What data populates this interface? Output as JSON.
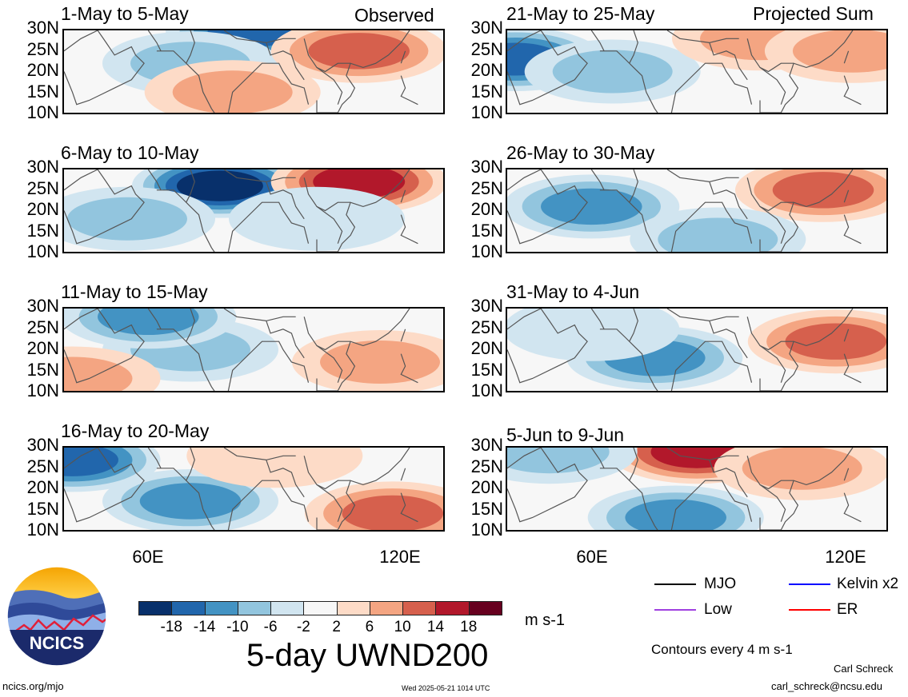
{
  "left_column_label": "Observed",
  "right_column_label": "Projected Sum",
  "panels_left": [
    {
      "title": "1-May to 5-May"
    },
    {
      "title": "6-May to 10-May"
    },
    {
      "title": "11-May to 15-May"
    },
    {
      "title": "16-May to 20-May"
    }
  ],
  "panels_right": [
    {
      "title": "21-May to 25-May"
    },
    {
      "title": "26-May to 30-May"
    },
    {
      "title": "31-May to 4-Jun"
    },
    {
      "title": "5-Jun to 9-Jun"
    }
  ],
  "y_ticks": [
    "30N",
    "25N",
    "20N",
    "15N",
    "10N"
  ],
  "x_ticks": [
    "60E",
    "120E"
  ],
  "colorbar": {
    "labels": [
      "-18",
      "-14",
      "-10",
      "-6",
      "-2",
      "2",
      "6",
      "10",
      "14",
      "18"
    ],
    "unit": "m s-1",
    "colors": [
      "#08306b",
      "#2166ac",
      "#4393c3",
      "#92c5de",
      "#d1e5f0",
      "#f7f7f7",
      "#fddbc7",
      "#f4a582",
      "#d6604d",
      "#b2182b",
      "#67001f"
    ]
  },
  "main_title": "5-day UWND200",
  "legend": {
    "items": [
      {
        "label": "MJO",
        "color": "#000000"
      },
      {
        "label": "Kelvin x2",
        "color": "#0000ff"
      },
      {
        "label": "Low",
        "color": "#a040e0"
      },
      {
        "label": "ER",
        "color": "#ff0000"
      }
    ],
    "contour_note": "Contours every 4 m s-1"
  },
  "logo": {
    "text": "NCICS"
  },
  "footer": {
    "url": "ncics.org/mjo",
    "timestamp": "Wed 2025-05-21 1014 UTC",
    "author": "Carl Schreck",
    "email": "carl_schreck@ncsu.edu"
  },
  "chart_data": {
    "type": "heatmap",
    "variable": "5-day UWND200",
    "unit": "m s-1",
    "levels": [
      -18,
      -14,
      -10,
      -6,
      -2,
      2,
      6,
      10,
      14,
      18
    ],
    "lat_range": [
      10,
      30
    ],
    "lon_range": [
      40,
      130
    ],
    "x_tick_labels": [
      "60E",
      "120E"
    ],
    "y_tick_labels": [
      "30N",
      "25N",
      "20N",
      "15N",
      "10N"
    ],
    "legend_placement": "bottom-right",
    "contour_interval_note": "Contours every 4 m s-1",
    "panels": [
      {
        "title": "1-May to 5-May",
        "column": "Observed",
        "fields": [
          {
            "lon": 85,
            "lat": 30,
            "value": -14
          },
          {
            "lon": 70,
            "lat": 22,
            "value": -6
          },
          {
            "lon": 110,
            "lat": 25,
            "value": 10
          },
          {
            "lon": 80,
            "lat": 15,
            "value": 6
          }
        ]
      },
      {
        "title": "6-May to 10-May",
        "column": "Observed",
        "fields": [
          {
            "lon": 77,
            "lat": 26,
            "value": -18
          },
          {
            "lon": 110,
            "lat": 27,
            "value": 14
          },
          {
            "lon": 55,
            "lat": 18,
            "value": -6
          },
          {
            "lon": 100,
            "lat": 18,
            "value": -2
          }
        ]
      },
      {
        "title": "11-May to 15-May",
        "column": "Observed",
        "fields": [
          {
            "lon": 70,
            "lat": 20,
            "value": -6
          },
          {
            "lon": 60,
            "lat": 28,
            "value": -10
          },
          {
            "lon": 115,
            "lat": 17,
            "value": 6
          },
          {
            "lon": 42,
            "lat": 13,
            "value": 6
          }
        ]
      },
      {
        "title": "16-May to 20-May",
        "column": "Observed",
        "fields": [
          {
            "lon": 42,
            "lat": 27,
            "value": -14
          },
          {
            "lon": 70,
            "lat": 17,
            "value": -10
          },
          {
            "lon": 118,
            "lat": 14,
            "value": 10
          },
          {
            "lon": 90,
            "lat": 28,
            "value": 2
          }
        ]
      },
      {
        "title": "21-May to 25-May",
        "column": "Projected Sum",
        "fields": [
          {
            "lon": 42,
            "lat": 23,
            "value": -14
          },
          {
            "lon": 65,
            "lat": 20,
            "value": -6
          },
          {
            "lon": 100,
            "lat": 28,
            "value": 6
          },
          {
            "lon": 122,
            "lat": 25,
            "value": 6
          }
        ]
      },
      {
        "title": "26-May to 30-May",
        "column": "Projected Sum",
        "fields": [
          {
            "lon": 60,
            "lat": 21,
            "value": -10
          },
          {
            "lon": 115,
            "lat": 25,
            "value": 10
          },
          {
            "lon": 90,
            "lat": 13,
            "value": -6
          }
        ]
      },
      {
        "title": "31-May to 4-Jun",
        "column": "Projected Sum",
        "fields": [
          {
            "lon": 75,
            "lat": 18,
            "value": -10
          },
          {
            "lon": 118,
            "lat": 22,
            "value": 10
          },
          {
            "lon": 60,
            "lat": 25,
            "value": -2
          }
        ]
      },
      {
        "title": "5-Jun to 9-Jun",
        "column": "Projected Sum",
        "fields": [
          {
            "lon": 80,
            "lat": 13,
            "value": -10
          },
          {
            "lon": 85,
            "lat": 29,
            "value": 14
          },
          {
            "lon": 110,
            "lat": 25,
            "value": 6
          },
          {
            "lon": 50,
            "lat": 29,
            "value": -6
          }
        ]
      }
    ]
  }
}
